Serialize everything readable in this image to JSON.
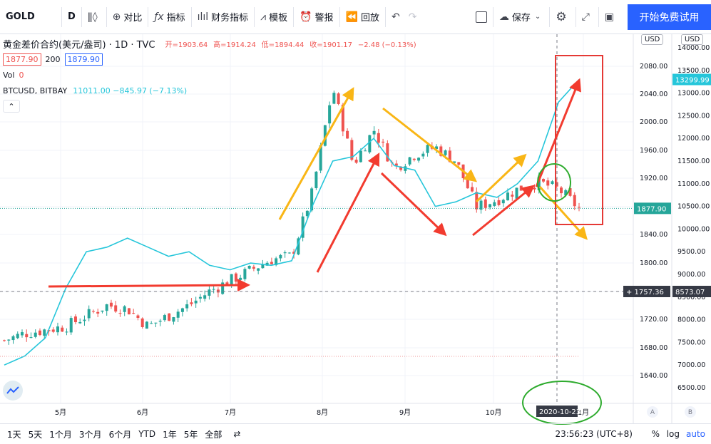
{
  "toolbar": {
    "symbol": "GOLD",
    "interval": "D",
    "compare": "对比",
    "indicators": "指标",
    "financials": "财务指标",
    "templates": "模板",
    "alert": "警报",
    "replay": "回放",
    "save": "保存",
    "trial": "开始免费试用"
  },
  "legend": {
    "title": "黄金差价合约(美元/盎司) · 1D · TVC",
    "open_label": "开=",
    "open": "1903.64",
    "high_label": "高=",
    "high": "1914.24",
    "low_label": "低=",
    "low": "1894.44",
    "close_label": "收=",
    "close": "1901.17",
    "change": "−2.48 (−0.13%)",
    "bid": "1877.90",
    "spread": "200",
    "ask": "1879.90",
    "vol_label": "Vol",
    "vol_value": "0",
    "btc_label": "BTCUSD, BITBAY",
    "btc_value": "11011.00 −845.97 (−7.13%)"
  },
  "axis": {
    "left_currency": "USD",
    "right_currency": "USD",
    "left_ticks": [
      "2080.00",
      "2040.00",
      "2000.00",
      "1960.00",
      "1920.00",
      "1880.00",
      "1840.00",
      "1800.00",
      "1760.00",
      "1720.00",
      "1680.00",
      "1640.00"
    ],
    "right_ticks": [
      "14000.00",
      "13500.00",
      "13000.00",
      "12500.00",
      "12000.00",
      "11500.00",
      "11000.00",
      "10500.00",
      "10000.00",
      "9500.00",
      "9000.00",
      "8500.00",
      "8000.00",
      "7500.00",
      "7000.00",
      "6500.00"
    ],
    "x_labels": [
      "5月",
      "6月",
      "7月",
      "8月",
      "9月",
      "10月",
      "1月"
    ],
    "gold_last": "1877.90",
    "btc_last": "13299.99",
    "crosshair_gold": "1757.36",
    "crosshair_btc": "8573.07",
    "crosshair_date": "2020-10-23"
  },
  "bottom": {
    "ranges": [
      "1天",
      "5天",
      "1个月",
      "3个月",
      "6个月",
      "YTD",
      "1年",
      "5年",
      "全部"
    ],
    "clock": "23:56:23 (UTC+8)",
    "percent": "%",
    "log": "log",
    "auto": "auto"
  },
  "colors": {
    "up": "#26a69a",
    "down": "#ef5350",
    "btc": "#26c6da",
    "accent": "#2962ff"
  },
  "chart_data": {
    "type": "line",
    "left_ylim": [
      1610,
      2100
    ],
    "right_ylim": [
      6000,
      14500
    ],
    "x": [
      "2020-04-13",
      "2020-04-20",
      "2020-04-27",
      "2020-05-04",
      "2020-05-11",
      "2020-05-18",
      "2020-05-25",
      "2020-06-01",
      "2020-06-08",
      "2020-06-15",
      "2020-06-22",
      "2020-06-29",
      "2020-07-06",
      "2020-07-13",
      "2020-07-20",
      "2020-07-27",
      "2020-08-03",
      "2020-08-10",
      "2020-08-17",
      "2020-08-24",
      "2020-08-31",
      "2020-09-07",
      "2020-09-14",
      "2020-09-21",
      "2020-09-28",
      "2020-10-05",
      "2020-10-12",
      "2020-10-19",
      "2020-10-26"
    ],
    "series": [
      {
        "name": "黄金差价合约(美元/盎司)",
        "values": [
          1690,
          1700,
          1705,
          1710,
          1725,
          1740,
          1735,
          1710,
          1725,
          1740,
          1760,
          1775,
          1790,
          1805,
          1810,
          1900,
          2050,
          1940,
          1990,
          1935,
          1955,
          1965,
          1945,
          1880,
          1890,
          1905,
          1915,
          1905,
          1878
        ]
      },
      {
        "name": "BTCUSD",
        "values": [
          7000,
          7200,
          7600,
          8700,
          9500,
          9600,
          9800,
          9600,
          9400,
          9500,
          9200,
          9100,
          9250,
          9200,
          9300,
          10500,
          11500,
          11600,
          12000,
          11400,
          11300,
          10500,
          10600,
          10800,
          10700,
          11000,
          11500,
          12800,
          13300
        ]
      }
    ]
  }
}
